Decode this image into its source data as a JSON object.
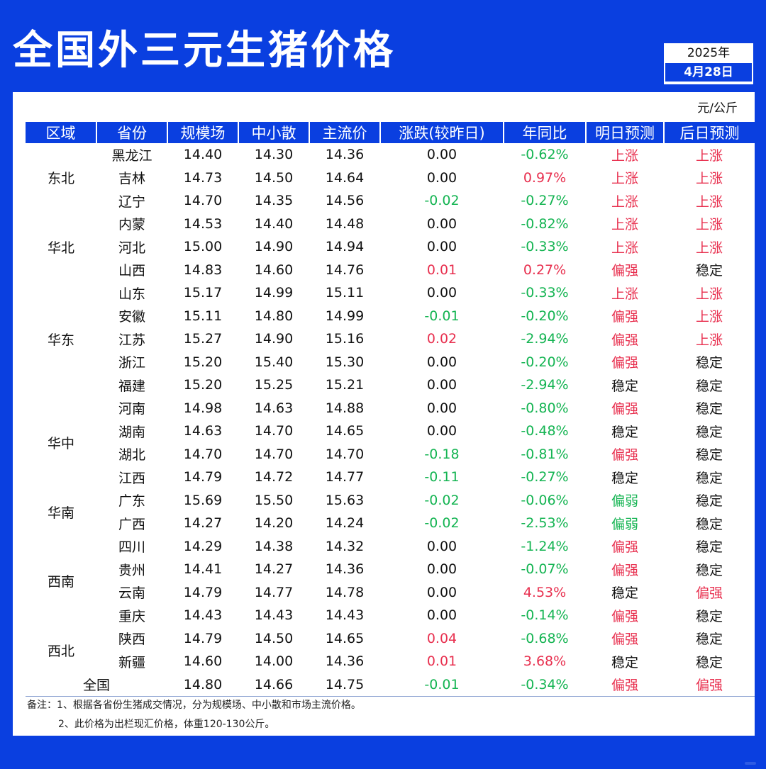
{
  "title": "全国外三元生猪价格",
  "date": {
    "year": "2025年",
    "day": "4月28日"
  },
  "unit": "元/公斤",
  "headers": [
    "区域",
    "省份",
    "规模场",
    "中小散",
    "主流价",
    "涨跌(较昨日)",
    "年同比",
    "明日预测",
    "后日预测"
  ],
  "regions": [
    {
      "name": "东北",
      "rows": 3
    },
    {
      "name": "华北",
      "rows": 3
    },
    {
      "name": "华东",
      "rows": 5
    },
    {
      "name": "华中",
      "rows": 4
    },
    {
      "name": "华南",
      "rows": 2
    },
    {
      "name": "西南",
      "rows": 4
    },
    {
      "name": "西北",
      "rows": 2
    }
  ],
  "rows": [
    [
      "黑龙江",
      "14.40",
      "14.30",
      "14.36",
      "0.00",
      "-0.62%",
      "上涨",
      "上涨"
    ],
    [
      "吉林",
      "14.73",
      "14.50",
      "14.64",
      "0.00",
      "0.97%",
      "上涨",
      "上涨"
    ],
    [
      "辽宁",
      "14.70",
      "14.35",
      "14.56",
      "-0.02",
      "-0.27%",
      "上涨",
      "上涨"
    ],
    [
      "内蒙",
      "14.53",
      "14.40",
      "14.48",
      "0.00",
      "-0.82%",
      "上涨",
      "上涨"
    ],
    [
      "河北",
      "15.00",
      "14.90",
      "14.94",
      "0.00",
      "-0.33%",
      "上涨",
      "上涨"
    ],
    [
      "山西",
      "14.83",
      "14.60",
      "14.76",
      "0.01",
      "0.27%",
      "偏强",
      "稳定"
    ],
    [
      "山东",
      "15.17",
      "14.99",
      "15.11",
      "0.00",
      "-0.33%",
      "上涨",
      "上涨"
    ],
    [
      "安徽",
      "15.11",
      "14.80",
      "14.99",
      "-0.01",
      "-0.20%",
      "偏强",
      "上涨"
    ],
    [
      "江苏",
      "15.27",
      "14.90",
      "15.16",
      "0.02",
      "-2.94%",
      "偏强",
      "上涨"
    ],
    [
      "浙江",
      "15.20",
      "15.40",
      "15.30",
      "0.00",
      "-0.20%",
      "偏强",
      "稳定"
    ],
    [
      "福建",
      "15.20",
      "15.25",
      "15.21",
      "0.00",
      "-2.94%",
      "稳定",
      "稳定"
    ],
    [
      "河南",
      "14.98",
      "14.63",
      "14.88",
      "0.00",
      "-0.80%",
      "偏强",
      "稳定"
    ],
    [
      "湖南",
      "14.63",
      "14.70",
      "14.65",
      "0.00",
      "-0.48%",
      "稳定",
      "稳定"
    ],
    [
      "湖北",
      "14.70",
      "14.70",
      "14.70",
      "-0.18",
      "-0.81%",
      "偏强",
      "稳定"
    ],
    [
      "江西",
      "14.79",
      "14.72",
      "14.77",
      "-0.11",
      "-0.27%",
      "稳定",
      "稳定"
    ],
    [
      "广东",
      "15.69",
      "15.50",
      "15.63",
      "-0.02",
      "-0.06%",
      "偏弱",
      "稳定"
    ],
    [
      "广西",
      "14.27",
      "14.20",
      "14.24",
      "-0.02",
      "-2.53%",
      "偏弱",
      "稳定"
    ],
    [
      "四川",
      "14.29",
      "14.38",
      "14.32",
      "0.00",
      "-1.24%",
      "偏强",
      "稳定"
    ],
    [
      "贵州",
      "14.41",
      "14.27",
      "14.36",
      "0.00",
      "-0.07%",
      "偏强",
      "稳定"
    ],
    [
      "云南",
      "14.79",
      "14.77",
      "14.78",
      "0.00",
      "4.53%",
      "稳定",
      "偏强"
    ],
    [
      "重庆",
      "14.43",
      "14.43",
      "14.43",
      "0.00",
      "-0.14%",
      "偏强",
      "稳定"
    ],
    [
      "陕西",
      "14.79",
      "14.50",
      "14.65",
      "0.04",
      "-0.68%",
      "偏强",
      "稳定"
    ],
    [
      "新疆",
      "14.60",
      "14.00",
      "14.36",
      "0.01",
      "3.68%",
      "稳定",
      "稳定"
    ]
  ],
  "total": [
    "全国",
    "14.80",
    "14.66",
    "14.75",
    "-0.01",
    "-0.34%",
    "偏强",
    "偏强"
  ],
  "notes": [
    "备注：1、根据各省份生猪成交情况，分为规模场、中小散和市场主流价格。",
    "2、此价格为出栏现汇价格，体重120-130公斤。"
  ],
  "colors": {
    "brand": "#0a3fe0",
    "up": "#e8304f",
    "down": "#14b452"
  }
}
